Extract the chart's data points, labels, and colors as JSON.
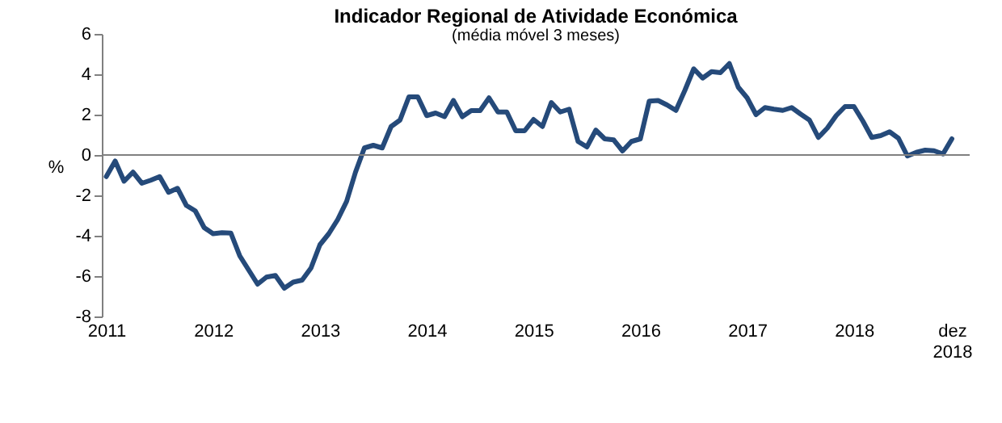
{
  "chart_data": {
    "type": "line",
    "title": "Indicador Regional de Atividade Económica",
    "subtitle": "(média móvel 3 meses)",
    "ylabel": "%",
    "categories": [
      "2011",
      null,
      null,
      null,
      null,
      null,
      null,
      null,
      null,
      null,
      null,
      null,
      "2012",
      null,
      null,
      null,
      null,
      null,
      null,
      null,
      null,
      null,
      null,
      null,
      "2013",
      null,
      null,
      null,
      null,
      null,
      null,
      null,
      null,
      null,
      null,
      null,
      "2014",
      null,
      null,
      null,
      null,
      null,
      null,
      null,
      null,
      null,
      null,
      null,
      "2015",
      null,
      null,
      null,
      null,
      null,
      null,
      null,
      null,
      null,
      null,
      null,
      "2016",
      null,
      null,
      null,
      null,
      null,
      null,
      null,
      null,
      null,
      null,
      null,
      "2017",
      null,
      null,
      null,
      null,
      null,
      null,
      null,
      null,
      null,
      null,
      null,
      "2018",
      null,
      null,
      null,
      null,
      null,
      null,
      null,
      null,
      null,
      null,
      "dez 2018"
    ],
    "series": [
      {
        "color": "#254a7a",
        "values": [
          -1.07,
          -0.3,
          -1.3,
          -0.85,
          -1.4,
          -1.25,
          -1.07,
          -1.85,
          -1.65,
          -2.5,
          -2.77,
          -3.6,
          -3.9,
          -3.85,
          -3.87,
          -5.0,
          -5.7,
          -6.4,
          -6.05,
          -5.97,
          -6.6,
          -6.3,
          -6.2,
          -5.6,
          -4.45,
          -3.9,
          -3.2,
          -2.3,
          -0.85,
          0.35,
          0.48,
          0.35,
          1.41,
          1.73,
          2.88,
          2.88,
          1.95,
          2.08,
          1.9,
          2.7,
          1.9,
          2.2,
          2.2,
          2.83,
          2.13,
          2.13,
          1.2,
          1.2,
          1.76,
          1.41,
          2.6,
          2.13,
          2.27,
          0.67,
          0.4,
          1.23,
          0.8,
          0.75,
          0.2,
          0.67,
          0.8,
          2.67,
          2.7,
          2.48,
          2.21,
          3.2,
          4.27,
          3.81,
          4.13,
          4.08,
          4.53,
          3.36,
          2.83,
          2.0,
          2.35,
          2.27,
          2.21,
          2.35,
          2.03,
          1.73,
          0.87,
          1.33,
          1.95,
          2.4,
          2.4,
          1.68,
          0.87,
          0.96,
          1.15,
          0.83,
          -0.05,
          0.13,
          0.24,
          0.21,
          0.05,
          0.8
        ]
      }
    ],
    "ylim": [
      -8,
      6
    ],
    "yticks": [
      -8,
      -6,
      -4,
      -2,
      0,
      2,
      4,
      6
    ],
    "ref_lines": [
      {
        "axis": "y",
        "value": 0,
        "color": "#808080"
      }
    ],
    "grid": false
  }
}
